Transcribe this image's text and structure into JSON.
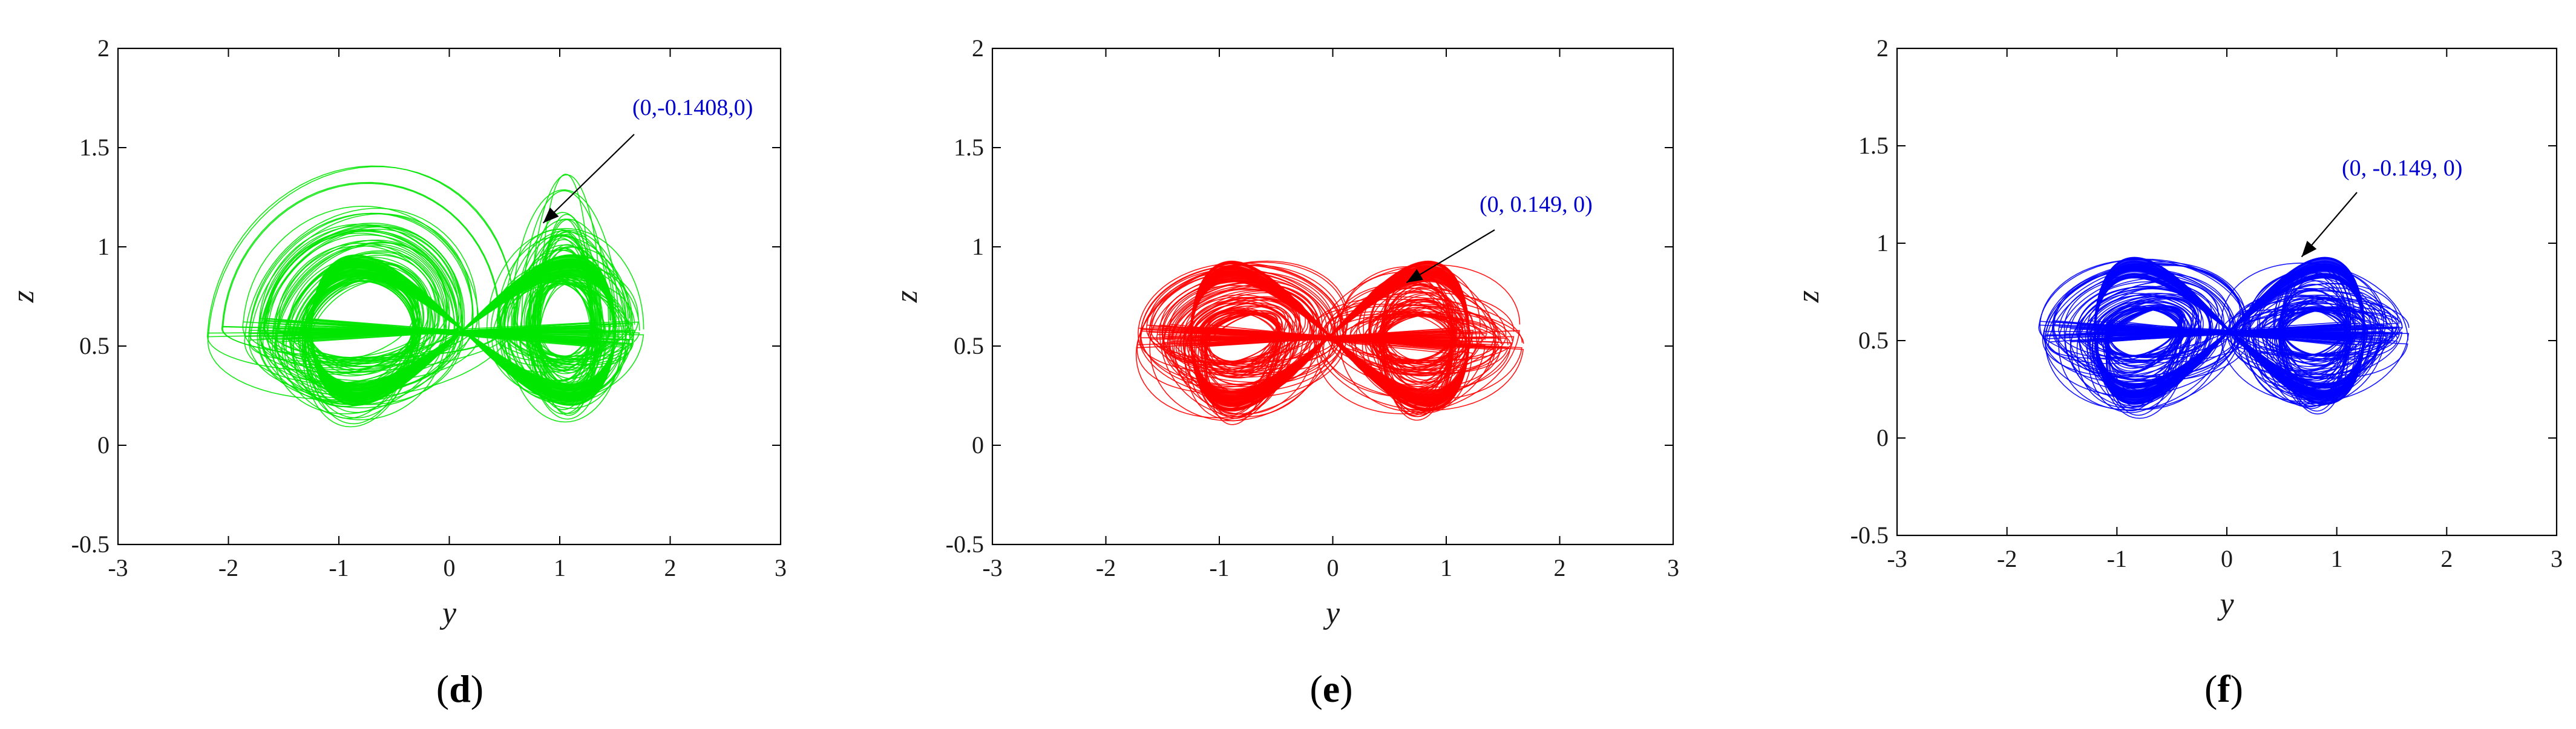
{
  "chart_data": [
    {
      "type": "line",
      "panel_label": "d",
      "title": "",
      "xlabel": "y",
      "ylabel": "z",
      "xlim": [
        -3,
        3
      ],
      "ylim": [
        -0.5,
        2
      ],
      "xticks": [
        "-3",
        "-2",
        "-1",
        "0",
        "1",
        "2",
        "3"
      ],
      "yticks": [
        "-0.5",
        "0",
        "0.5",
        "1",
        "1.5",
        "2"
      ],
      "grid": false,
      "series": [
        {
          "color": "#00e600",
          "attractor": {
            "x_range": [
              -2.4,
              1.85
            ],
            "z_range": [
              0.09,
              1.44
            ],
            "left_center": [
              -0.8,
              0.58
            ],
            "right_center": [
              1.05,
              0.58
            ]
          }
        }
      ],
      "annotation": {
        "text": "(0,-0.1408,0)",
        "color": "#0000cc",
        "arrow_target": [
          0.85,
          1.12
        ]
      }
    },
    {
      "type": "line",
      "panel_label": "e",
      "title": "",
      "xlabel": "y",
      "ylabel": "z",
      "xlim": [
        -3,
        3
      ],
      "ylim": [
        -0.5,
        2
      ],
      "xticks": [
        "-3",
        "-2",
        "-1",
        "0",
        "1",
        "2",
        "3"
      ],
      "yticks": [
        "-0.5",
        "0",
        "0.5",
        "1",
        "1.5",
        "2"
      ],
      "grid": false,
      "series": [
        {
          "color": "#ff0000",
          "attractor": {
            "x_range": [
              -1.85,
              1.8
            ],
            "z_range": [
              0.1,
              0.93
            ],
            "left_center": [
              -0.8,
              0.55
            ],
            "right_center": [
              0.75,
              0.55
            ]
          }
        }
      ],
      "annotation": {
        "text": "(0, 0.149, 0)",
        "color": "#0000cc",
        "arrow_target": [
          0.65,
          0.82
        ]
      }
    },
    {
      "type": "line",
      "panel_label": "f",
      "title": "",
      "xlabel": "y",
      "ylabel": "z",
      "xlim": [
        -3,
        3
      ],
      "ylim": [
        -0.5,
        2
      ],
      "xticks": [
        "-3",
        "-2",
        "-1",
        "0",
        "1",
        "2",
        "3"
      ],
      "yticks": [
        "-0.5",
        "0",
        "0.5",
        "1",
        "1.5",
        "2"
      ],
      "grid": false,
      "series": [
        {
          "color": "#0000ff",
          "attractor": {
            "x_range": [
              -1.85,
              1.8
            ],
            "z_range": [
              0.1,
              0.93
            ],
            "left_center": [
              -0.75,
              0.55
            ],
            "right_center": [
              0.8,
              0.55
            ]
          }
        }
      ],
      "annotation": {
        "text": "(0, -0.149, 0)",
        "color": "#0000cc",
        "arrow_target": [
          0.68,
          0.93
        ]
      }
    }
  ]
}
